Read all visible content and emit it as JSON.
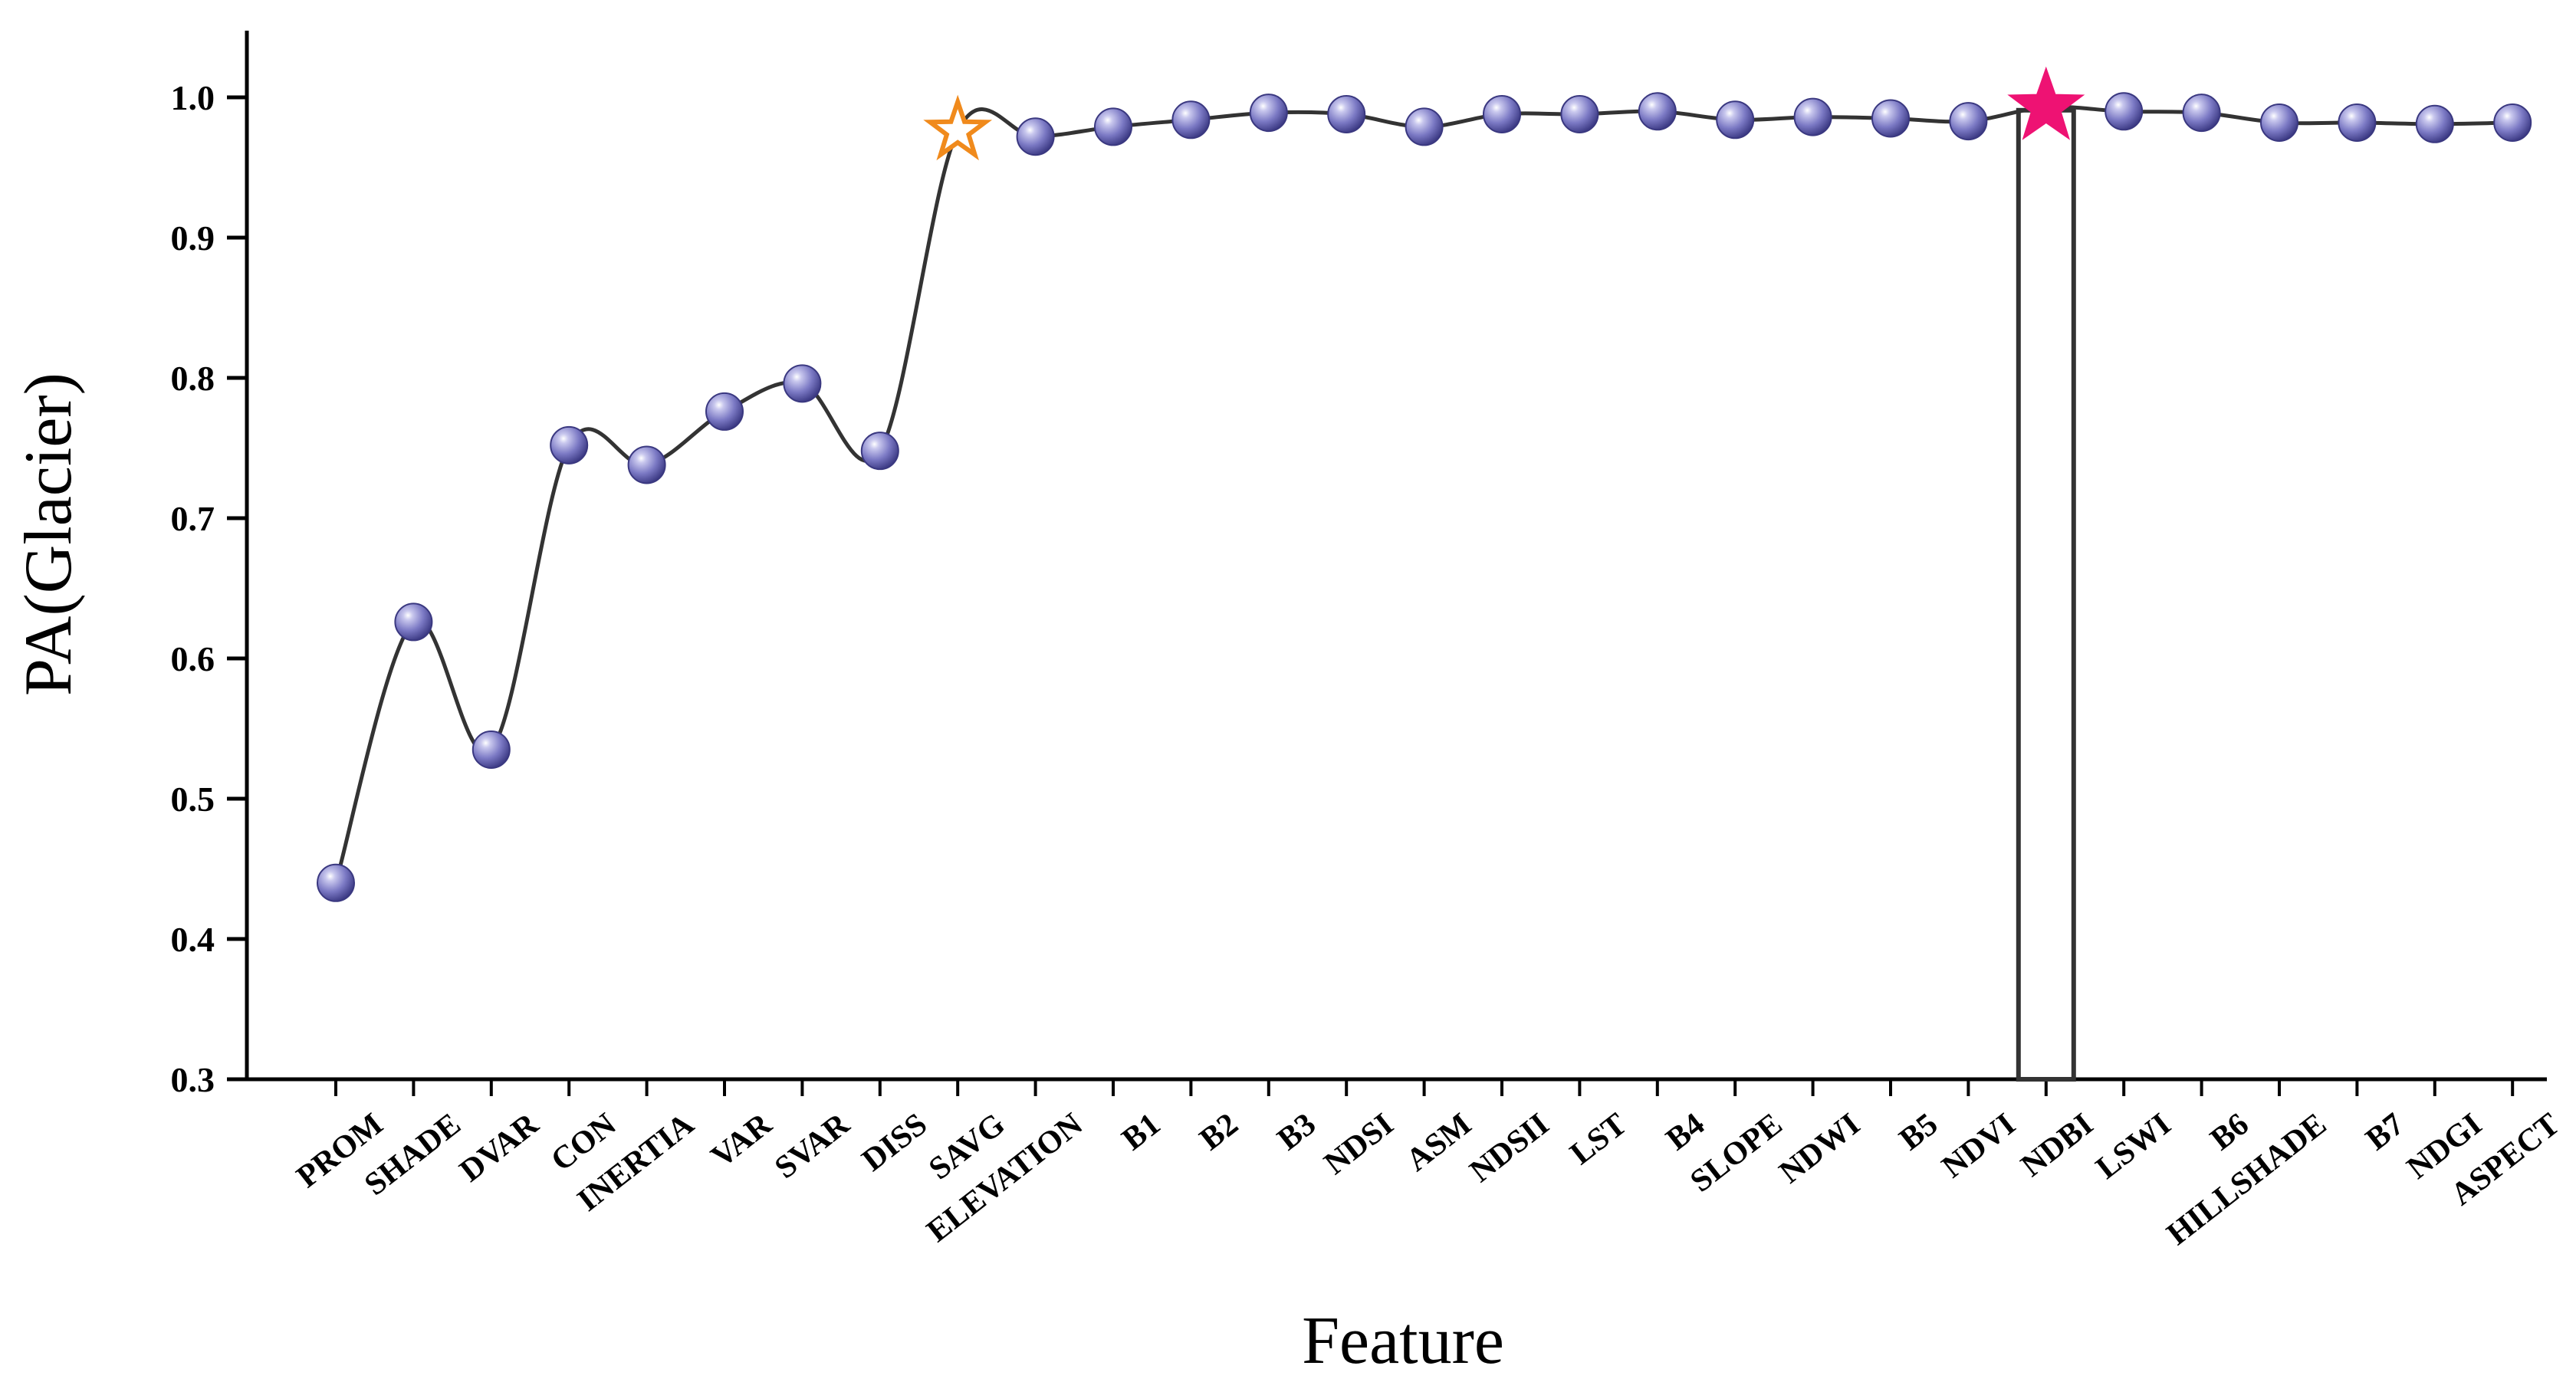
{
  "chart_data": {
    "type": "line",
    "xlabel": "Feature",
    "ylabel": "PA(Glacier)",
    "ylim": [
      0.3,
      1.05
    ],
    "yticks": [
      "0.3",
      "0.4",
      "0.5",
      "0.6",
      "0.7",
      "0.8",
      "0.9",
      "1.0"
    ],
    "categories": [
      "PROM",
      "SHADE",
      "DVAR",
      "CON",
      "INERTIA",
      "VAR",
      "SVAR",
      "DISS",
      "SAVG",
      "ELEVATION",
      "B1",
      "B2",
      "B3",
      "NDSI",
      "ASM",
      "NDSII",
      "LST",
      "B4",
      "SLOPE",
      "NDWI",
      "B5",
      "NDVI",
      "NDBI",
      "LSWI",
      "B6",
      "HILLSHADE",
      "B7",
      "NDGI",
      "ASPECT"
    ],
    "values": [
      0.44,
      0.626,
      0.535,
      0.752,
      0.738,
      0.776,
      0.796,
      0.748,
      0.976,
      0.972,
      0.979,
      0.984,
      0.989,
      0.988,
      0.979,
      0.988,
      0.988,
      0.99,
      0.984,
      0.986,
      0.985,
      0.983,
      0.993,
      0.99,
      0.989,
      0.982,
      0.982,
      0.981,
      0.982
    ],
    "grid": false,
    "legend": "none",
    "highlights": [
      {
        "category": "SAVG",
        "marker": "hollow-star",
        "color": "#f08a1c"
      },
      {
        "category": "NDBI",
        "marker": "filled-star",
        "color": "#ee1273",
        "box": true
      }
    ],
    "marker_color": "#7b79c4",
    "line_color": "#333333"
  }
}
